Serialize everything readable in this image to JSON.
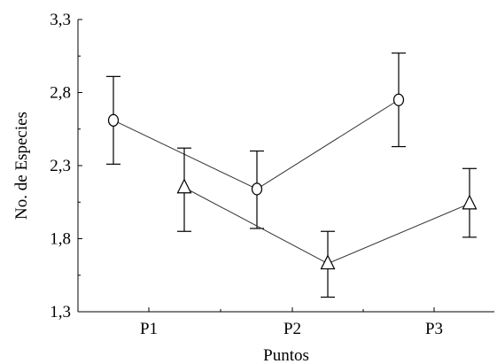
{
  "chart_data": {
    "type": "line",
    "xlabel": "Puntos",
    "ylabel": "No. de Especies",
    "categories": [
      "P1",
      "P2",
      "P3"
    ],
    "ylim": [
      1.3,
      3.3
    ],
    "yticks": [
      "1,3",
      "1,8",
      "2,3",
      "2,8",
      "3,3"
    ],
    "ytick_values": [
      1.3,
      1.8,
      2.3,
      2.8,
      3.3
    ],
    "grid": false,
    "series": [
      {
        "marker": "circle",
        "values": [
          2.61,
          2.14,
          2.75
        ],
        "error_low": [
          2.31,
          1.87,
          2.43
        ],
        "error_high": [
          2.91,
          2.4,
          3.07
        ]
      },
      {
        "marker": "triangle",
        "values": [
          2.15,
          1.63,
          2.04
        ],
        "error_low": [
          1.85,
          1.4,
          1.81
        ],
        "error_high": [
          2.42,
          1.85,
          2.28
        ]
      }
    ]
  }
}
